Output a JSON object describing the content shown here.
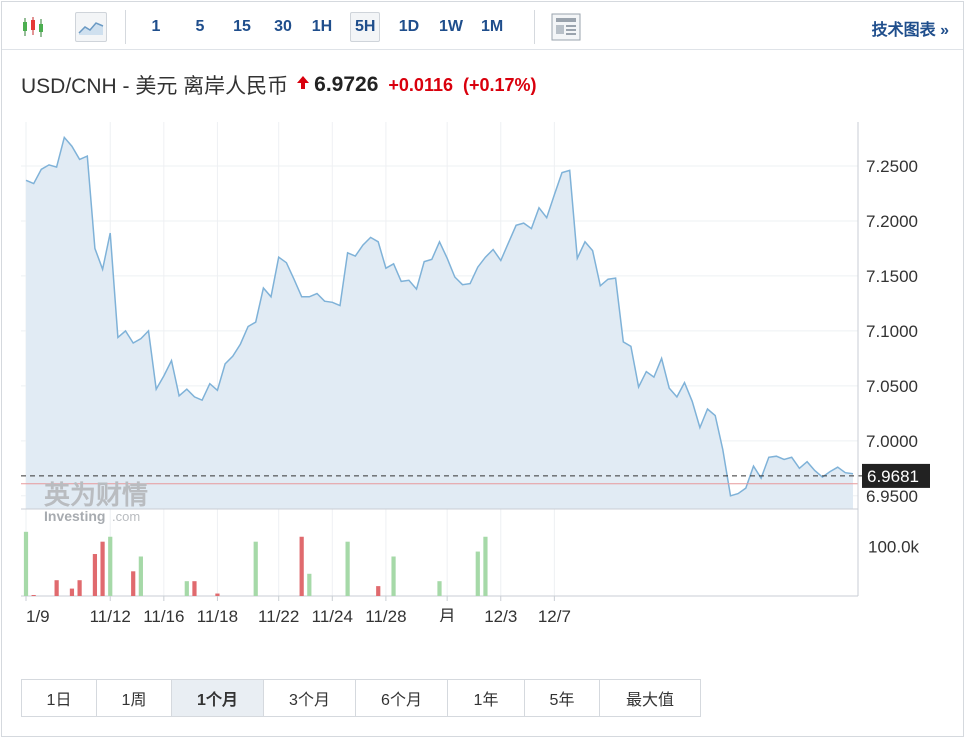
{
  "toolbar": {
    "intervals": [
      "1",
      "5",
      "15",
      "30",
      "1H",
      "5H",
      "1D",
      "1W",
      "1M"
    ],
    "selected_interval": "5H",
    "tech_chart_label": "技术图表 »"
  },
  "quote": {
    "name": "USD/CNH - 美元 离岸人民币",
    "last": "6.9726",
    "change": "+0.0116",
    "change_pct": "(+0.17%)",
    "up_color": "#d9000d"
  },
  "watermark": {
    "brand_cn": "英为财情",
    "brand_en": "Investing",
    "brand_domain": ".com"
  },
  "ranges": {
    "items": [
      "1日",
      "1周",
      "1个月",
      "3个月",
      "6个月",
      "1年",
      "5年",
      "最大值"
    ],
    "selected": "1个月"
  },
  "chart_data": {
    "type": "area",
    "price": {
      "values": [
        7.237,
        7.234,
        7.247,
        7.251,
        7.249,
        7.276,
        7.268,
        7.256,
        7.259,
        7.175,
        7.156,
        7.189,
        7.094,
        7.1,
        7.089,
        7.093,
        7.1,
        7.047,
        7.059,
        7.073,
        7.041,
        7.047,
        7.04,
        7.037,
        7.052,
        7.046,
        7.07,
        7.077,
        7.088,
        7.104,
        7.108,
        7.139,
        7.131,
        7.167,
        7.162,
        7.147,
        7.131,
        7.131,
        7.134,
        7.127,
        7.126,
        7.123,
        7.171,
        7.168,
        7.178,
        7.185,
        7.181,
        7.157,
        7.161,
        7.145,
        7.146,
        7.138,
        7.163,
        7.165,
        7.181,
        7.166,
        7.149,
        7.142,
        7.143,
        7.158,
        7.167,
        7.174,
        7.164,
        7.18,
        7.196,
        7.198,
        7.193,
        7.212,
        7.203,
        7.224,
        7.244,
        7.246,
        7.166,
        7.181,
        7.173,
        7.141,
        7.147,
        7.148,
        7.09,
        7.086,
        7.049,
        7.063,
        7.058,
        7.075,
        7.048,
        7.04,
        7.053,
        7.036,
        7.012,
        7.029,
        7.023,
        6.992,
        6.95,
        6.952,
        6.957,
        6.977,
        6.966,
        6.985,
        6.986,
        6.983,
        6.985,
        6.975,
        6.981,
        6.973,
        6.967,
        6.972,
        6.976,
        6.971,
        6.97
      ],
      "line_color": "#7fb2d8",
      "fill_color": "#e1ebf4"
    },
    "current_value": "6.9681",
    "reference_line": 6.961,
    "y_ticks": [
      "7.2500",
      "7.2000",
      "7.1500",
      "7.1000",
      "7.0500",
      "7.0000",
      "6.9500"
    ],
    "y_tick_values": [
      7.25,
      7.2,
      7.15,
      7.1,
      7.05,
      7.0,
      6.95
    ],
    "ylim": [
      6.938,
      7.29
    ],
    "x_ticks": [
      "1/9",
      "11/12",
      "11/16",
      "11/18",
      "11/22",
      "11/24",
      "11/28",
      "月",
      "12/3",
      "12/7"
    ],
    "x_tick_indices": [
      0,
      11,
      18,
      25,
      33,
      40,
      47,
      55,
      62,
      69
    ],
    "volume": {
      "label": "100.0k",
      "label_value": 100000,
      "ylim": [
        0,
        160000
      ],
      "values": [
        130000,
        2000,
        0,
        0,
        32000,
        0,
        15000,
        32000,
        0,
        85000,
        110000,
        120000,
        0,
        0,
        50000,
        80000,
        0,
        0,
        0,
        0,
        0,
        30000,
        30000,
        0,
        0,
        5000,
        0,
        0,
        0,
        0,
        110000,
        0,
        0,
        0,
        0,
        0,
        120000,
        45000,
        0,
        0,
        0,
        0,
        110000,
        0,
        0,
        0,
        20000,
        0,
        80000,
        0,
        0,
        0,
        0,
        0,
        30000,
        0,
        0,
        0,
        0,
        90000,
        120000,
        0,
        0,
        0,
        0,
        0,
        0,
        0,
        0,
        0,
        0,
        0,
        0,
        0,
        0,
        0,
        0,
        0,
        0,
        0,
        0,
        0,
        0,
        0,
        0,
        0,
        0,
        0,
        0,
        0,
        0,
        0,
        0,
        0,
        0,
        0,
        0,
        0,
        0,
        0,
        0,
        0,
        0,
        0,
        0,
        0,
        0,
        0,
        0
      ],
      "up_color": "#a6d9a8",
      "down_color": "#e06a6e"
    }
  }
}
